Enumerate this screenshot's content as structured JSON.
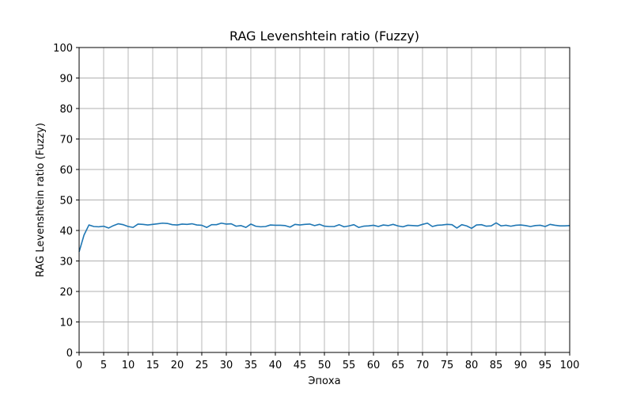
{
  "chart_data": {
    "type": "line",
    "title": "RAG Levenshtein ratio (Fuzzy)",
    "xlabel": "Эпоха",
    "ylabel": "RAG Levenshtein ratio (Fuzzy)",
    "xlim": [
      0,
      100
    ],
    "ylim": [
      0,
      100
    ],
    "xticks": [
      0,
      5,
      10,
      15,
      20,
      25,
      30,
      35,
      40,
      45,
      50,
      55,
      60,
      65,
      70,
      75,
      80,
      85,
      90,
      95,
      100
    ],
    "yticks": [
      0,
      10,
      20,
      30,
      40,
      50,
      60,
      70,
      80,
      90,
      100
    ],
    "grid": true,
    "line_color": "#1f77b4",
    "series": [
      {
        "x": [
          0,
          1,
          2,
          3,
          4,
          5,
          6,
          7,
          8,
          9,
          10,
          11,
          12,
          13,
          14,
          15,
          16,
          17,
          18,
          19,
          20,
          21,
          22,
          23,
          24,
          25,
          26,
          27,
          28,
          29,
          30,
          31,
          32,
          33,
          34,
          35,
          36,
          37,
          38,
          39,
          40,
          41,
          42,
          43,
          44,
          45,
          46,
          47,
          48,
          49,
          50,
          51,
          52,
          53,
          54,
          55,
          56,
          57,
          58,
          59,
          60,
          61,
          62,
          63,
          64,
          65,
          66,
          67,
          68,
          69,
          70,
          71,
          72,
          73,
          74,
          75,
          76,
          77,
          78,
          79,
          80,
          81,
          82,
          83,
          84,
          85,
          86,
          87,
          88,
          89,
          90,
          91,
          92,
          93,
          94,
          95,
          96,
          97,
          98,
          99,
          100
        ],
        "values": [
          33.0,
          38.5,
          41.8,
          41.3,
          41.2,
          41.4,
          40.8,
          41.6,
          42.2,
          41.9,
          41.3,
          41.0,
          42.1,
          42.0,
          41.8,
          42.0,
          42.2,
          42.4,
          42.3,
          41.9,
          41.8,
          42.1,
          42.0,
          42.2,
          41.8,
          41.7,
          41.0,
          41.9,
          41.9,
          42.4,
          42.1,
          42.2,
          41.4,
          41.6,
          41.0,
          42.1,
          41.4,
          41.2,
          41.3,
          41.8,
          41.7,
          41.7,
          41.6,
          41.1,
          42.0,
          41.8,
          42.0,
          42.1,
          41.6,
          42.0,
          41.4,
          41.3,
          41.3,
          41.9,
          41.2,
          41.5,
          41.9,
          41.0,
          41.4,
          41.5,
          41.7,
          41.3,
          41.8,
          41.6,
          42.0,
          41.5,
          41.2,
          41.7,
          41.6,
          41.5,
          42.0,
          42.4,
          41.3,
          41.7,
          41.8,
          42.0,
          41.9,
          40.8,
          41.9,
          41.5,
          40.7,
          41.8,
          41.9,
          41.4,
          41.5,
          42.5,
          41.5,
          41.7,
          41.4,
          41.7,
          41.8,
          41.6,
          41.3,
          41.6,
          41.7,
          41.3,
          42.0,
          41.7,
          41.5,
          41.5,
          41.6
        ]
      }
    ]
  }
}
